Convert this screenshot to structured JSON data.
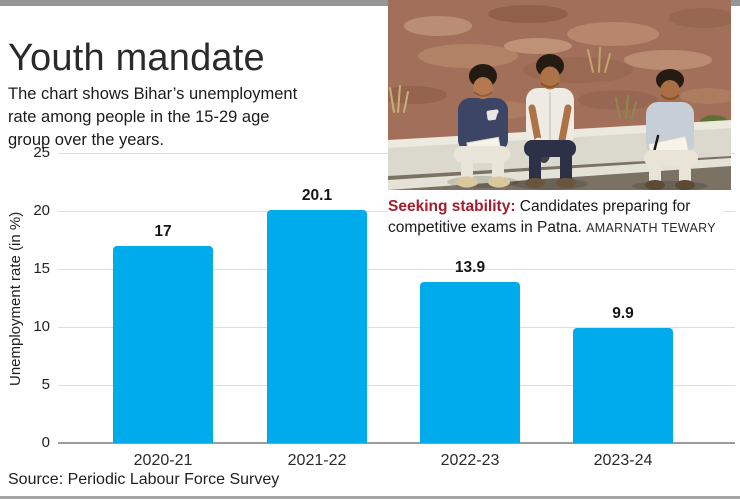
{
  "header": {
    "title": "Youth mandate",
    "subtitle": "The chart shows Bihar’s unemployment rate among people in the 15-29 age group over the years."
  },
  "photo": {
    "caption_lead": "Seeking stability:",
    "caption_text": "Candidates preparing for competitive exams in Patna.",
    "caption_credit": "AMARNATH TEWARY",
    "caption_lead_color": "#A31D2C"
  },
  "chart_data": {
    "type": "bar",
    "categories": [
      "2020-21",
      "2021-22",
      "2022-23",
      "2023-24"
    ],
    "values": [
      17,
      20.1,
      13.9,
      9.9
    ],
    "value_labels": [
      "17",
      "20.1",
      "13.9",
      "9.9"
    ],
    "title": "Youth mandate",
    "xlabel": "",
    "ylabel": "Unemployment rate (in %)",
    "ylim": [
      0,
      25
    ],
    "yticks": [
      0,
      5,
      10,
      15,
      20,
      25
    ],
    "grid": true,
    "legend_position": "none",
    "bar_color": "#00ABEB"
  },
  "footer": {
    "source": "Source: Periodic Labour Force Survey"
  },
  "colors": {
    "rule_gray": "#969696",
    "grid_gray": "#dedede",
    "axis_gray": "#9b9b9b",
    "text_dark": "#1e1e1e"
  }
}
